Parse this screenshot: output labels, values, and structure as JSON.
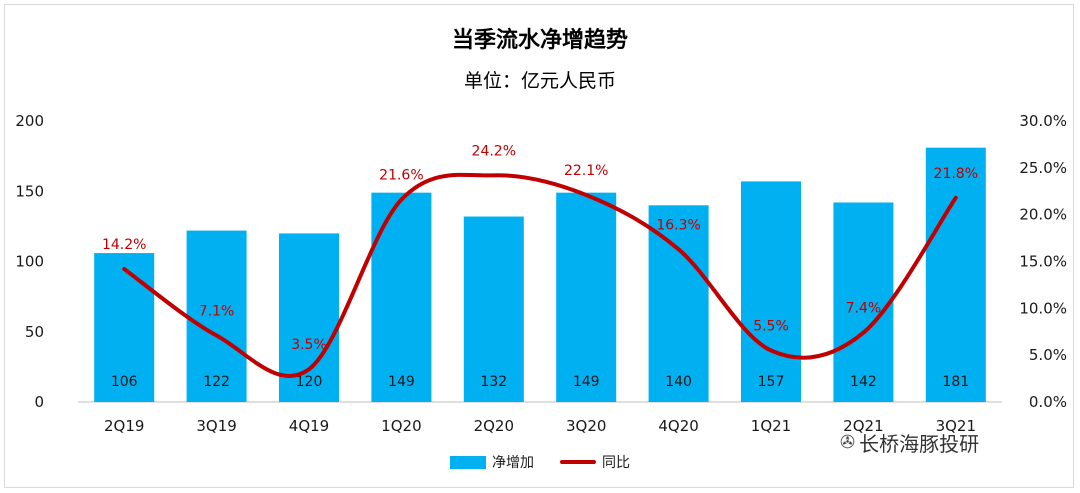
{
  "title": "当季流水净增趋势",
  "subtitle": "单位：亿元人民币",
  "brand": {
    "icon": "wechat-icon",
    "text": "长桥海豚投研"
  },
  "colors": {
    "bar": "#00b0f0",
    "line": "#c00000"
  },
  "chart_data": {
    "type": "bar",
    "categories": [
      "2Q19",
      "3Q19",
      "4Q19",
      "1Q20",
      "2Q20",
      "3Q20",
      "4Q20",
      "1Q21",
      "2Q21",
      "3Q21"
    ],
    "series": [
      {
        "name": "净增加",
        "type": "bar",
        "axis": "left",
        "values": [
          106,
          122,
          120,
          149,
          132,
          149,
          140,
          157,
          142,
          181
        ],
        "labels": [
          "106",
          "122",
          "120",
          "149",
          "132",
          "149",
          "140",
          "157",
          "142",
          "181"
        ]
      },
      {
        "name": "同比",
        "type": "line",
        "axis": "right",
        "values": [
          14.2,
          7.1,
          3.5,
          21.6,
          24.2,
          22.1,
          16.3,
          5.5,
          7.4,
          21.8
        ],
        "labels": [
          "14.2%",
          "7.1%",
          "3.5%",
          "21.6%",
          "24.2%",
          "22.1%",
          "16.3%",
          "5.5%",
          "7.4%",
          "21.8%"
        ]
      }
    ],
    "y_left": {
      "ylim": [
        0,
        200
      ],
      "ticks": [
        "0",
        "50",
        "100",
        "150",
        "200"
      ]
    },
    "y_right": {
      "ylim": [
        0,
        30
      ],
      "ticks": [
        "0.0%",
        "5.0%",
        "10.0%",
        "15.0%",
        "20.0%",
        "25.0%",
        "30.0%"
      ]
    },
    "legend": {
      "position": "bottom",
      "items": [
        "净增加",
        "同比"
      ]
    },
    "grid": false
  }
}
